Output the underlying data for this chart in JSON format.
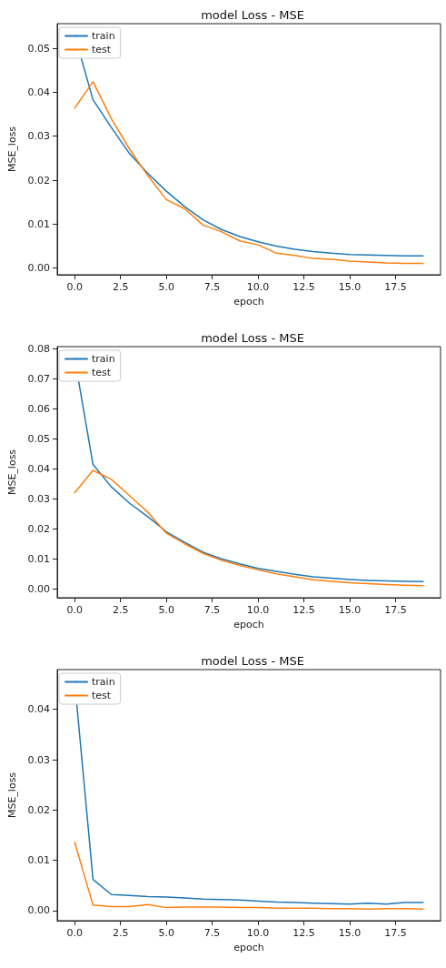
{
  "chart_data": [
    {
      "type": "line",
      "title": "model Loss - MSE",
      "xlabel": "epoch",
      "ylabel": "MSE_loss",
      "legend": "top left",
      "marker": "none",
      "line_style": "solid",
      "x": [
        0,
        1,
        2,
        3,
        4,
        5,
        6,
        7,
        8,
        9,
        10,
        11,
        12,
        13,
        14,
        15,
        16,
        17,
        18,
        19
      ],
      "xlim": [
        -0.95,
        19.95
      ],
      "ylim": [
        -0.0015,
        0.0556
      ],
      "xticks": [
        {
          "value": 0,
          "label": "0.0"
        },
        {
          "value": 2.5,
          "label": "2.5"
        },
        {
          "value": 5,
          "label": "5.0"
        },
        {
          "value": 7.5,
          "label": "7.5"
        },
        {
          "value": 10,
          "label": "10.0"
        },
        {
          "value": 12.5,
          "label": "12.5"
        },
        {
          "value": 15,
          "label": "15.0"
        },
        {
          "value": 17.5,
          "label": "17.5"
        }
      ],
      "yticks": [
        {
          "value": 0,
          "label": "0.00"
        },
        {
          "value": 0.01,
          "label": "0.01"
        },
        {
          "value": 0.02,
          "label": "0.02"
        },
        {
          "value": 0.03,
          "label": "0.03"
        },
        {
          "value": 0.04,
          "label": "0.04"
        },
        {
          "value": 0.05,
          "label": "0.05"
        }
      ],
      "series": [
        {
          "name": "train",
          "color": "#1f77b4",
          "values": [
            0.053,
            0.0383,
            0.032,
            0.026,
            0.0215,
            0.0175,
            0.014,
            0.011,
            0.0088,
            0.0072,
            0.006,
            0.005,
            0.0043,
            0.0038,
            0.0034,
            0.0031,
            0.003,
            0.0029,
            0.0028,
            0.0028
          ]
        },
        {
          "name": "test",
          "color": "#ff7f0e",
          "values": [
            0.0364,
            0.0424,
            0.034,
            0.027,
            0.021,
            0.0156,
            0.0135,
            0.0098,
            0.0083,
            0.0062,
            0.0053,
            0.0034,
            0.0029,
            0.0022,
            0.002,
            0.0016,
            0.0014,
            0.0012,
            0.0011,
            0.0011
          ]
        }
      ]
    },
    {
      "type": "line",
      "title": "model Loss - MSE",
      "xlabel": "epoch",
      "ylabel": "MSE_loss",
      "legend": "top left",
      "marker": "none",
      "line_style": "solid",
      "x": [
        0,
        1,
        2,
        3,
        4,
        5,
        6,
        7,
        8,
        9,
        10,
        11,
        12,
        13,
        14,
        15,
        16,
        17,
        18,
        19
      ],
      "xlim": [
        -0.95,
        19.95
      ],
      "ylim": [
        -0.003,
        0.0808
      ],
      "xticks": [
        {
          "value": 0,
          "label": "0.0"
        },
        {
          "value": 2.5,
          "label": "2.5"
        },
        {
          "value": 5,
          "label": "5.0"
        },
        {
          "value": 7.5,
          "label": "7.5"
        },
        {
          "value": 10,
          "label": "10.0"
        },
        {
          "value": 12.5,
          "label": "12.5"
        },
        {
          "value": 15,
          "label": "15.0"
        },
        {
          "value": 17.5,
          "label": "17.5"
        }
      ],
      "yticks": [
        {
          "value": 0,
          "label": "0.00"
        },
        {
          "value": 0.01,
          "label": "0.01"
        },
        {
          "value": 0.02,
          "label": "0.02"
        },
        {
          "value": 0.03,
          "label": "0.03"
        },
        {
          "value": 0.04,
          "label": "0.04"
        },
        {
          "value": 0.05,
          "label": "0.05"
        },
        {
          "value": 0.06,
          "label": "0.06"
        },
        {
          "value": 0.07,
          "label": "0.07"
        },
        {
          "value": 0.08,
          "label": "0.08"
        }
      ],
      "series": [
        {
          "name": "train",
          "color": "#1f77b4",
          "values": [
            0.077,
            0.0415,
            0.034,
            0.0285,
            0.024,
            0.019,
            0.0155,
            0.0122,
            0.01,
            0.0083,
            0.0068,
            0.0058,
            0.0048,
            0.004,
            0.0035,
            0.0031,
            0.0028,
            0.0026,
            0.0025,
            0.0024
          ]
        },
        {
          "name": "test",
          "color": "#ff7f0e",
          "values": [
            0.032,
            0.0395,
            0.0365,
            0.031,
            0.0255,
            0.0185,
            0.015,
            0.0118,
            0.0095,
            0.0078,
            0.0063,
            0.005,
            0.004,
            0.003,
            0.0025,
            0.002,
            0.0017,
            0.0014,
            0.0012,
            0.001
          ]
        }
      ]
    },
    {
      "type": "line",
      "title": "model Loss - MSE",
      "xlabel": "epoch",
      "ylabel": "MSE_loss",
      "legend": "top left",
      "marker": "none",
      "line_style": "solid",
      "x": [
        0,
        1,
        2,
        3,
        4,
        5,
        6,
        7,
        8,
        9,
        10,
        11,
        12,
        13,
        14,
        15,
        16,
        17,
        18,
        19
      ],
      "xlim": [
        -0.95,
        19.95
      ],
      "ylim": [
        -0.002,
        0.0479
      ],
      "xticks": [
        {
          "value": 0,
          "label": "0.0"
        },
        {
          "value": 2.5,
          "label": "2.5"
        },
        {
          "value": 5,
          "label": "5.0"
        },
        {
          "value": 7.5,
          "label": "7.5"
        },
        {
          "value": 10,
          "label": "10.0"
        },
        {
          "value": 12.5,
          "label": "12.5"
        },
        {
          "value": 15,
          "label": "15.0"
        },
        {
          "value": 17.5,
          "label": "17.5"
        }
      ],
      "yticks": [
        {
          "value": 0,
          "label": "0.00"
        },
        {
          "value": 0.01,
          "label": "0.01"
        },
        {
          "value": 0.02,
          "label": "0.02"
        },
        {
          "value": 0.03,
          "label": "0.03"
        },
        {
          "value": 0.04,
          "label": "0.04"
        }
      ],
      "series": [
        {
          "name": "train",
          "color": "#1f77b4",
          "values": [
            0.0456,
            0.0062,
            0.0032,
            0.003,
            0.0028,
            0.0027,
            0.0025,
            0.0023,
            0.0022,
            0.0021,
            0.0019,
            0.0017,
            0.0016,
            0.0015,
            0.0014,
            0.0013,
            0.0015,
            0.0013,
            0.0016,
            0.0016
          ]
        },
        {
          "name": "test",
          "color": "#ff7f0e",
          "values": [
            0.0136,
            0.0011,
            0.0008,
            0.0008,
            0.0012,
            0.0006,
            0.0007,
            0.0007,
            0.0007,
            0.0006,
            0.0006,
            0.0005,
            0.0005,
            0.0005,
            0.0004,
            0.0004,
            0.0003,
            0.0004,
            0.0004,
            0.0003
          ]
        }
      ]
    }
  ]
}
